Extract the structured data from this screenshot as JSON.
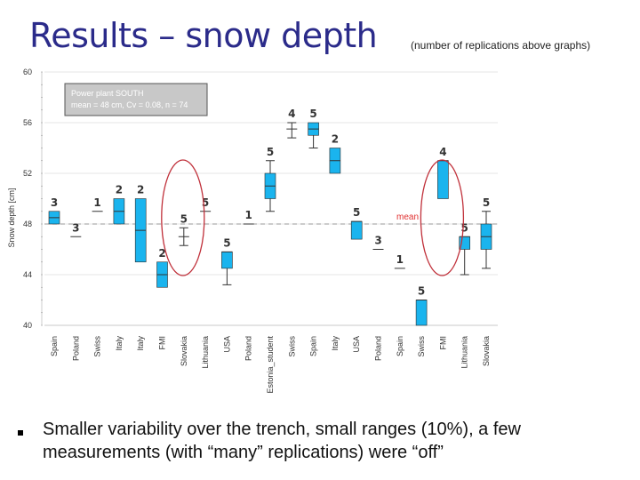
{
  "page": {
    "title": "Results – snow depth",
    "subtitle": "(number of replications above graphs)",
    "bullet": "Smaller variability over the trench, small ranges (10%), a few measurements (with “many” replications) were “off”"
  },
  "chart_data": {
    "type": "box",
    "ylabel": "Snow depth [cm]",
    "ylim": [
      40,
      60
    ],
    "yticks": [
      40,
      44,
      48,
      52,
      56,
      60
    ],
    "mean_value": 48,
    "mean_label": "mean",
    "legend_box": {
      "line1": "Power plant SOUTH",
      "line2": "mean = 48 cm, Cv = 0.08, n = 74"
    },
    "colors": {
      "box": "#1ab4ee",
      "box_stroke": "#2a2a2a",
      "mean_line": "#9a9a9a",
      "mean_text": "#e03030",
      "circle": "#c0303a"
    },
    "categories": [
      "Spain",
      "Poland",
      "Swiss",
      "Italy",
      "Italy",
      "FMI",
      "Slovakia",
      "Lithuania",
      "USA",
      "Poland",
      "Estonia_student",
      "Swiss",
      "Spain",
      "Italy",
      "USA",
      "Poland",
      "Spain",
      "Swiss",
      "FMI",
      "Lithuania",
      "Slovakia"
    ],
    "boxes": [
      {
        "n": "3",
        "q1": 48.0,
        "q3": 49.0,
        "median": 48.5,
        "whisker_low": null,
        "whisker_high": null
      },
      {
        "n": "3",
        "q1": 47.0,
        "q3": 47.0,
        "median": 47.0,
        "whisker_low": null,
        "whisker_high": null
      },
      {
        "n": "1",
        "q1": 49.0,
        "q3": 49.0,
        "median": 49.0,
        "whisker_low": null,
        "whisker_high": null
      },
      {
        "n": "2",
        "q1": 48.0,
        "q3": 50.0,
        "median": 49.0,
        "whisker_low": null,
        "whisker_high": null
      },
      {
        "n": "2",
        "q1": 45.0,
        "q3": 50.0,
        "median": 47.5,
        "whisker_low": null,
        "whisker_high": null
      },
      {
        "n": "2",
        "q1": 43.0,
        "q3": 45.0,
        "median": 44.0,
        "whisker_low": null,
        "whisker_high": null
      },
      {
        "n": "5",
        "q1": 47.0,
        "q3": 47.0,
        "median": 47.0,
        "whisker_low": 46.3,
        "whisker_high": 47.7
      },
      {
        "n": "5",
        "q1": 49.0,
        "q3": 49.0,
        "median": 49.0,
        "whisker_low": null,
        "whisker_high": null
      },
      {
        "n": "5",
        "q1": 44.5,
        "q3": 45.8,
        "median": 45.8,
        "whisker_low": 43.2,
        "whisker_high": null
      },
      {
        "n": "1",
        "q1": 48.0,
        "q3": 48.0,
        "median": 48.0,
        "whisker_low": null,
        "whisker_high": null
      },
      {
        "n": "5",
        "q1": 50.0,
        "q3": 52.0,
        "median": 51.0,
        "whisker_low": 49.0,
        "whisker_high": 53.0
      },
      {
        "n": "4",
        "q1": 55.5,
        "q3": 55.5,
        "median": 55.5,
        "whisker_low": 54.8,
        "whisker_high": 56.0
      },
      {
        "n": "5",
        "q1": 55.0,
        "q3": 56.0,
        "median": 55.5,
        "whisker_low": 54.0,
        "whisker_high": null
      },
      {
        "n": "2",
        "q1": 52.0,
        "q3": 54.0,
        "median": 53.0,
        "whisker_low": null,
        "whisker_high": null
      },
      {
        "n": "5",
        "q1": 46.8,
        "q3": 48.2,
        "median": 48.2,
        "whisker_low": null,
        "whisker_high": null
      },
      {
        "n": "3",
        "q1": 46.0,
        "q3": 46.0,
        "median": 46.0,
        "whisker_low": null,
        "whisker_high": null
      },
      {
        "n": "1",
        "q1": 44.5,
        "q3": 44.5,
        "median": 44.5,
        "whisker_low": null,
        "whisker_high": null
      },
      {
        "n": "5",
        "q1": 40.0,
        "q3": 42.0,
        "median": 42.0,
        "whisker_low": null,
        "whisker_high": null
      },
      {
        "n": "4",
        "q1": 50.0,
        "q3": 53.0,
        "median": 53.0,
        "whisker_low": null,
        "whisker_high": null
      },
      {
        "n": "5",
        "q1": 46.0,
        "q3": 47.0,
        "median": 47.0,
        "whisker_low": 44.0,
        "whisker_high": null
      },
      {
        "n": "5",
        "q1": 46.0,
        "q3": 48.0,
        "median": 47.0,
        "whisker_low": 44.5,
        "whisker_high": 49.0
      }
    ],
    "highlighted_categories": [
      6,
      18
    ]
  }
}
